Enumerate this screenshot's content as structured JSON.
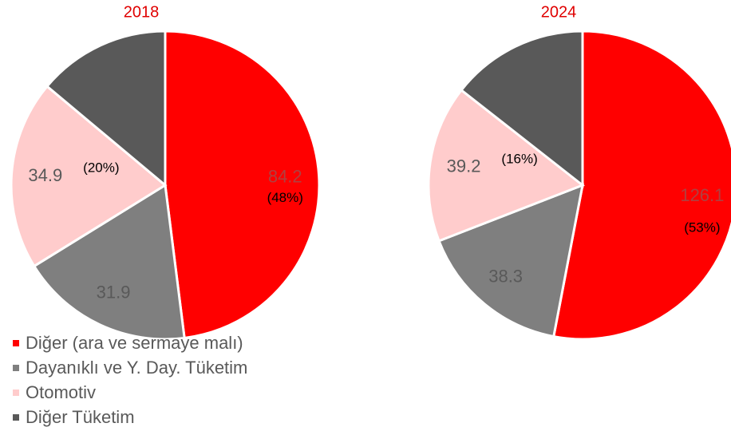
{
  "chart_data": [
    {
      "type": "pie",
      "title": "2018",
      "categories": [
        "Diğer (ara ve sermaye malı)",
        "Dayanıklı ve Y. Day. Tüketim",
        "Otomotiv",
        "Diğer Tüketim"
      ],
      "values": [
        84.2,
        31.9,
        34.9,
        24.4
      ],
      "value_labels": [
        "84.2",
        "31.9",
        "34.9",
        null
      ],
      "share_labels": [
        "(48%)",
        null,
        "(20%)",
        null
      ],
      "colors": [
        "#ff0000",
        "#7f7f7f",
        "#ffcccc",
        "#595959"
      ]
    },
    {
      "type": "pie",
      "title": "2024",
      "categories": [
        "Diğer (ara ve sermaye malı)",
        "Dayanıklı ve Y. Day. Tüketim",
        "Otomotiv",
        "Diğer Tüketim"
      ],
      "values": [
        126.1,
        38.3,
        39.2,
        34.3
      ],
      "value_labels": [
        "126.1",
        "38.3",
        "39.2",
        null
      ],
      "share_labels": [
        "(53%)",
        null,
        "(16%)",
        null
      ],
      "colors": [
        "#ff0000",
        "#7f7f7f",
        "#ffcccc",
        "#595959"
      ]
    }
  ]
}
